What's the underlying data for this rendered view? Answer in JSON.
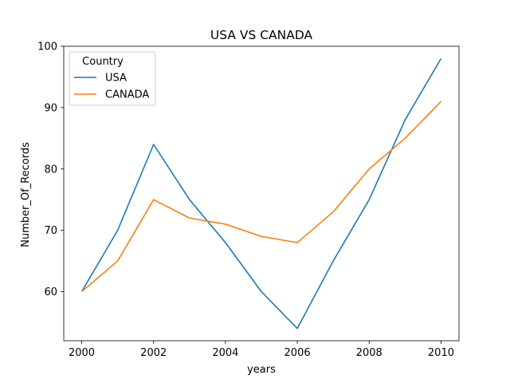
{
  "chart_data": {
    "type": "line",
    "title": "USA VS CANADA",
    "xlabel": "years",
    "ylabel": "Number_Of_Records",
    "x": [
      2000,
      2001,
      2002,
      2003,
      2004,
      2005,
      2006,
      2007,
      2008,
      2009,
      2010
    ],
    "xlim": [
      1999.5,
      2010.5
    ],
    "ylim": [
      52,
      100
    ],
    "xticks": [
      2000,
      2002,
      2004,
      2006,
      2008,
      2010
    ],
    "yticks": [
      60,
      70,
      80,
      90,
      100
    ],
    "grid": false,
    "legend": {
      "title": "Country",
      "placement": "top-left"
    },
    "series": [
      {
        "name": "USA",
        "color": "#1f77b4",
        "values": [
          60,
          70,
          84,
          75,
          68,
          60,
          54,
          65,
          75,
          88,
          98
        ]
      },
      {
        "name": "CANADA",
        "color": "#ff7f0e",
        "values": [
          60,
          65,
          75,
          72,
          71,
          69,
          68,
          73,
          80,
          85,
          91
        ]
      }
    ]
  }
}
